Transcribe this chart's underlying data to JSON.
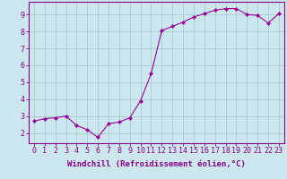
{
  "x_data": [
    0,
    1,
    2,
    3,
    4,
    5,
    6,
    7,
    8,
    9,
    10,
    11,
    12,
    13,
    14,
    15,
    16,
    17,
    18,
    19,
    20,
    21,
    22,
    23
  ],
  "y_data": [
    2.7,
    2.85,
    2.9,
    3.0,
    2.45,
    2.2,
    1.75,
    2.55,
    2.65,
    2.9,
    3.9,
    5.5,
    8.05,
    8.3,
    8.55,
    8.85,
    9.05,
    9.25,
    9.35,
    9.35,
    9.0,
    8.95,
    8.5,
    9.05
  ],
  "line_color": "#990099",
  "marker": "D",
  "marker_size": 2,
  "bg_color": "#cce8ee",
  "grid_color": "#aacccc",
  "xlabel": "Windchill (Refroidissement éolien,°C)",
  "xlim": [
    -0.5,
    23.5
  ],
  "ylim": [
    1.4,
    9.75
  ],
  "yticks": [
    2,
    3,
    4,
    5,
    6,
    7,
    8,
    9
  ],
  "xticks": [
    0,
    1,
    2,
    3,
    4,
    5,
    6,
    7,
    8,
    9,
    10,
    11,
    12,
    13,
    14,
    15,
    16,
    17,
    18,
    19,
    20,
    21,
    22,
    23
  ],
  "tick_color": "#880088",
  "label_color": "#880088",
  "spine_color": "#880088",
  "xlabel_fontsize": 6.5,
  "tick_fontsize": 6.0
}
